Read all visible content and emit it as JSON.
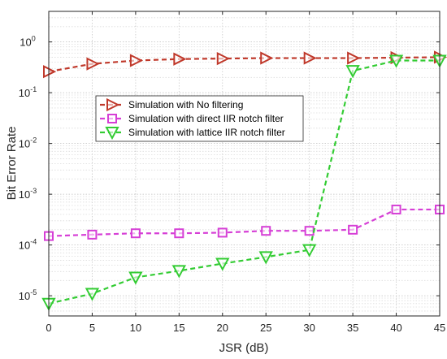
{
  "chart_data": {
    "type": "line",
    "xlabel": "JSR (dB)",
    "ylabel": "Bit Error Rate",
    "x": [
      0,
      5,
      10,
      15,
      20,
      25,
      30,
      35,
      40,
      45
    ],
    "xlim": [
      0,
      45
    ],
    "ylim": [
      4e-06,
      4
    ],
    "yscale": "log",
    "grid": true,
    "legend_position": "upper-left",
    "x_ticks": [
      "0",
      "5",
      "10",
      "15",
      "20",
      "25",
      "30",
      "35",
      "40",
      "45"
    ],
    "y_ticks": [
      {
        "value": 1e-05,
        "base": "10",
        "exp": "-5"
      },
      {
        "value": 0.0001,
        "base": "10",
        "exp": "-4"
      },
      {
        "value": 0.001,
        "base": "10",
        "exp": "-3"
      },
      {
        "value": 0.01,
        "base": "10",
        "exp": "-2"
      },
      {
        "value": 0.1,
        "base": "10",
        "exp": "-1"
      },
      {
        "value": 1,
        "base": "10",
        "exp": "0"
      }
    ],
    "series": [
      {
        "name": "Simulation with No filtering",
        "color": "#c0392b",
        "marker": "triangle-right",
        "values": [
          0.26,
          0.37,
          0.43,
          0.46,
          0.47,
          0.48,
          0.48,
          0.48,
          0.49,
          0.5
        ]
      },
      {
        "name": "Simulation with direct IIR notch filter",
        "color": "#d63fd6",
        "marker": "square",
        "values": [
          0.00015,
          0.00016,
          0.00017,
          0.00017,
          0.000175,
          0.00019,
          0.00019,
          0.0002,
          0.0005,
          0.0005
        ]
      },
      {
        "name": "Simulation with lattice IIR notch filter",
        "color": "#33cc33",
        "marker": "triangle-down",
        "values": [
          7e-06,
          1.1e-05,
          2.3e-05,
          3.1e-05,
          4.3e-05,
          5.8e-05,
          8e-05,
          0.27,
          0.43,
          0.43
        ]
      }
    ]
  }
}
